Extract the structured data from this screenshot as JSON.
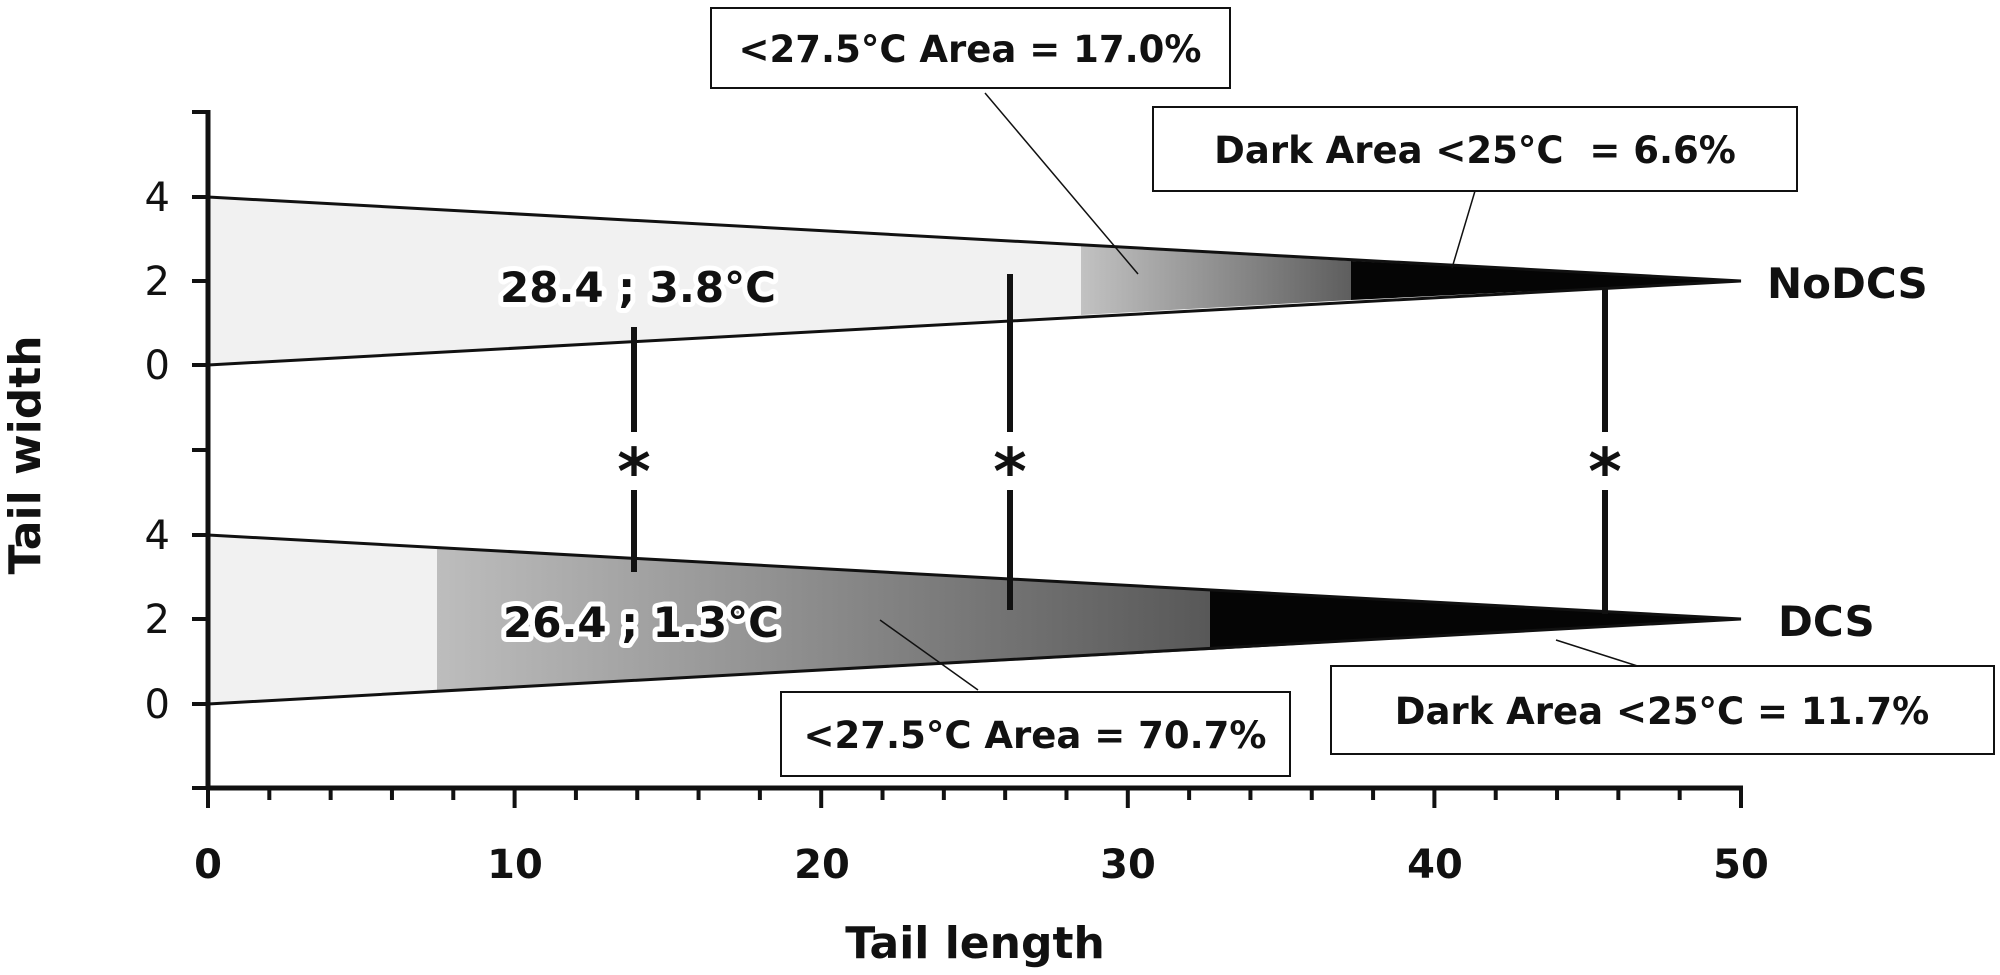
{
  "axes": {
    "xlabel": "Tail length",
    "ylabel": "Tail width",
    "x_ticks": [
      "0",
      "10",
      "20",
      "30",
      "40",
      "50"
    ],
    "y_ticks_top": [
      "4",
      "2",
      "0"
    ],
    "y_ticks_bottom": [
      "4",
      "2",
      "0"
    ]
  },
  "chart_data": {
    "type": "diagram",
    "xlim": [
      0,
      50
    ],
    "tails": [
      {
        "name": "NoDCS",
        "stats": "28.4 ; 3.8°C",
        "base_width": 4,
        "gradient_start": 28.5,
        "dark_start": 37.5,
        "annotation_area": "<27.5°C Area = 17.0%",
        "annotation_dark": "Dark Area <25°C  = 6.6%"
      },
      {
        "name": "DCS",
        "stats": "26.4 ; 1.3°C",
        "base_width": 4,
        "gradient_start": 7.5,
        "dark_start": 32.8,
        "annotation_area": "<27.5°C Area = 70.7%",
        "annotation_dark": "Dark Area <25°C = 11.7%"
      }
    ],
    "significance_markers": [
      {
        "x": 13.9,
        "label": "*"
      },
      {
        "x": 26.2,
        "label": "*"
      },
      {
        "x": 45.5,
        "label": "*"
      }
    ]
  }
}
